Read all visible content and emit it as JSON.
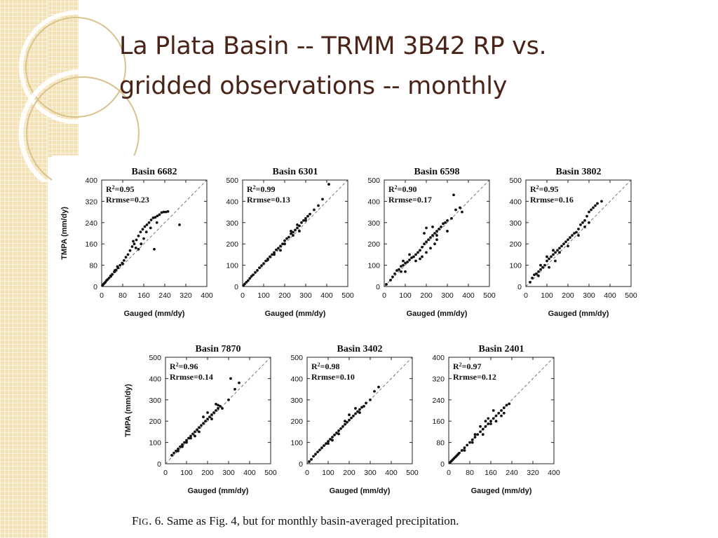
{
  "slide": {
    "title_line1": "La Plata Basin -- TRMM 3B42 RP vs.",
    "title_line2": "gridded observations -- monthly",
    "caption_prefix": "F",
    "caption_smallcaps": "IG",
    "caption_rest": ". 6. Same as Fig. 4, but for monthly basin-averaged precipitation."
  },
  "colors": {
    "title": "#4a2418",
    "background_strip": "#f3e2b5",
    "points": "#111111"
  },
  "chart_data": [
    {
      "type": "scatter",
      "title": "Basin 6682",
      "xlabel": "Gauged (mm/dy)",
      "ylabel": "TMPA (mm/dy)",
      "xlim": [
        0,
        400
      ],
      "ylim": [
        0,
        400
      ],
      "xticks": [
        "0",
        "80",
        "160",
        "240",
        "320",
        "400"
      ],
      "yticks": [
        "0",
        "80",
        "160",
        "240",
        "320",
        "400"
      ],
      "r2_label": "R",
      "r2_value": "=0.95",
      "rrmse_label": "Rrmse=0.23",
      "reference_line": "1:1 dashed",
      "points": [
        [
          3,
          4
        ],
        [
          6,
          8
        ],
        [
          10,
          12
        ],
        [
          14,
          16
        ],
        [
          18,
          22
        ],
        [
          22,
          26
        ],
        [
          28,
          32
        ],
        [
          34,
          40
        ],
        [
          40,
          46
        ],
        [
          48,
          55
        ],
        [
          55,
          62
        ],
        [
          62,
          70
        ],
        [
          70,
          80
        ],
        [
          78,
          88
        ],
        [
          85,
          98
        ],
        [
          92,
          110
        ],
        [
          100,
          120
        ],
        [
          108,
          135
        ],
        [
          116,
          150
        ],
        [
          124,
          160
        ],
        [
          132,
          175
        ],
        [
          140,
          190
        ],
        [
          148,
          205
        ],
        [
          156,
          215
        ],
        [
          164,
          225
        ],
        [
          172,
          232
        ],
        [
          180,
          240
        ],
        [
          188,
          250
        ],
        [
          196,
          258
        ],
        [
          204,
          260
        ],
        [
          212,
          265
        ],
        [
          220,
          270
        ],
        [
          228,
          278
        ],
        [
          236,
          280
        ],
        [
          244,
          280
        ],
        [
          252,
          282
        ],
        [
          186,
          220
        ],
        [
          170,
          205
        ],
        [
          210,
          240
        ],
        [
          296,
          232
        ],
        [
          150,
          160
        ],
        [
          160,
          180
        ],
        [
          130,
          145
        ],
        [
          120,
          170
        ],
        [
          200,
          140
        ],
        [
          60,
          75
        ],
        [
          50,
          60
        ],
        [
          35,
          38
        ],
        [
          80,
          85
        ],
        [
          140,
          140
        ]
      ]
    },
    {
      "type": "scatter",
      "title": "Basin 6301",
      "xlabel": "Gauged (mm/dy)",
      "ylabel": "",
      "xlim": [
        0,
        500
      ],
      "ylim": [
        0,
        500
      ],
      "xticks": [
        "0",
        "100",
        "200",
        "300",
        "400",
        "500"
      ],
      "yticks": [
        "0",
        "100",
        "200",
        "300",
        "400",
        "500"
      ],
      "r2_label": "R",
      "r2_value": "=0.99",
      "rrmse_label": "Rrmse=0.13",
      "reference_line": "1:1 dashed",
      "points": [
        [
          4,
          5
        ],
        [
          10,
          12
        ],
        [
          18,
          20
        ],
        [
          26,
          28
        ],
        [
          34,
          38
        ],
        [
          42,
          48
        ],
        [
          50,
          55
        ],
        [
          60,
          66
        ],
        [
          70,
          76
        ],
        [
          80,
          88
        ],
        [
          90,
          98
        ],
        [
          100,
          108
        ],
        [
          110,
          120
        ],
        [
          120,
          130
        ],
        [
          130,
          140
        ],
        [
          140,
          150
        ],
        [
          150,
          160
        ],
        [
          160,
          172
        ],
        [
          170,
          180
        ],
        [
          180,
          190
        ],
        [
          190,
          200
        ],
        [
          200,
          215
        ],
        [
          210,
          225
        ],
        [
          220,
          232
        ],
        [
          230,
          248
        ],
        [
          240,
          255
        ],
        [
          250,
          265
        ],
        [
          260,
          275
        ],
        [
          270,
          285
        ],
        [
          280,
          300
        ],
        [
          290,
          310
        ],
        [
          300,
          320
        ],
        [
          310,
          330
        ],
        [
          320,
          340
        ],
        [
          340,
          360
        ],
        [
          360,
          380
        ],
        [
          380,
          410
        ],
        [
          410,
          480
        ],
        [
          230,
          260
        ],
        [
          260,
          290
        ],
        [
          300,
          310
        ],
        [
          150,
          150
        ],
        [
          120,
          125
        ],
        [
          200,
          200
        ],
        [
          240,
          240
        ],
        [
          180,
          170
        ],
        [
          270,
          260
        ]
      ]
    },
    {
      "type": "scatter",
      "title": "Basin 6598",
      "xlabel": "Gauged (mm/dy)",
      "ylabel": "",
      "xlim": [
        0,
        500
      ],
      "ylim": [
        0,
        500
      ],
      "xticks": [
        "0",
        "100",
        "200",
        "300",
        "400",
        "500"
      ],
      "yticks": [
        "0",
        "100",
        "200",
        "300",
        "400",
        "500"
      ],
      "r2_label": "R",
      "r2_value": "=0.90",
      "rrmse_label": "Rrmse=0.17",
      "reference_line": "1:1 dashed",
      "points": [
        [
          10,
          10
        ],
        [
          30,
          30
        ],
        [
          40,
          45
        ],
        [
          50,
          60
        ],
        [
          60,
          75
        ],
        [
          70,
          80
        ],
        [
          80,
          95
        ],
        [
          90,
          100
        ],
        [
          100,
          110
        ],
        [
          110,
          115
        ],
        [
          120,
          125
        ],
        [
          130,
          135
        ],
        [
          140,
          140
        ],
        [
          150,
          150
        ],
        [
          160,
          160
        ],
        [
          170,
          170
        ],
        [
          180,
          185
        ],
        [
          190,
          200
        ],
        [
          200,
          210
        ],
        [
          210,
          220
        ],
        [
          220,
          230
        ],
        [
          230,
          240
        ],
        [
          240,
          250
        ],
        [
          250,
          260
        ],
        [
          260,
          270
        ],
        [
          270,
          280
        ],
        [
          280,
          295
        ],
        [
          290,
          300
        ],
        [
          300,
          310
        ],
        [
          330,
          430
        ],
        [
          250,
          240
        ],
        [
          100,
          70
        ],
        [
          180,
          140
        ],
        [
          200,
          160
        ],
        [
          220,
          180
        ],
        [
          240,
          200
        ],
        [
          150,
          120
        ],
        [
          190,
          250
        ],
        [
          200,
          275
        ],
        [
          230,
          280
        ],
        [
          300,
          260
        ],
        [
          120,
          150
        ],
        [
          90,
          120
        ],
        [
          80,
          70
        ],
        [
          320,
          320
        ],
        [
          340,
          360
        ],
        [
          360,
          370
        ],
        [
          370,
          350
        ],
        [
          250,
          220
        ],
        [
          170,
          130
        ]
      ]
    },
    {
      "type": "scatter",
      "title": "Basin 3802",
      "xlabel": "Gauged (mm/dy)",
      "ylabel": "",
      "xlim": [
        0,
        500
      ],
      "ylim": [
        0,
        500
      ],
      "xticks": [
        "0",
        "100",
        "200",
        "300",
        "400",
        "500"
      ],
      "yticks": [
        "0",
        "100",
        "200",
        "300",
        "400",
        "500"
      ],
      "r2_label": "R",
      "r2_value": "=0.95",
      "rrmse_label": "Rrmse=0.16",
      "reference_line": "1:1 dashed",
      "points": [
        [
          20,
          20
        ],
        [
          30,
          40
        ],
        [
          40,
          55
        ],
        [
          50,
          60
        ],
        [
          60,
          70
        ],
        [
          70,
          80
        ],
        [
          80,
          90
        ],
        [
          90,
          100
        ],
        [
          100,
          120
        ],
        [
          110,
          130
        ],
        [
          120,
          140
        ],
        [
          130,
          150
        ],
        [
          140,
          160
        ],
        [
          150,
          170
        ],
        [
          160,
          180
        ],
        [
          170,
          190
        ],
        [
          180,
          200
        ],
        [
          190,
          210
        ],
        [
          200,
          220
        ],
        [
          210,
          230
        ],
        [
          220,
          240
        ],
        [
          230,
          250
        ],
        [
          240,
          255
        ],
        [
          250,
          270
        ],
        [
          260,
          290
        ],
        [
          270,
          300
        ],
        [
          280,
          310
        ],
        [
          290,
          330
        ],
        [
          300,
          350
        ],
        [
          310,
          360
        ],
        [
          320,
          370
        ],
        [
          330,
          380
        ],
        [
          340,
          390
        ],
        [
          360,
          400
        ],
        [
          70,
          100
        ],
        [
          100,
          140
        ],
        [
          130,
          170
        ],
        [
          160,
          160
        ],
        [
          200,
          190
        ],
        [
          250,
          240
        ],
        [
          280,
          280
        ],
        [
          110,
          90
        ],
        [
          140,
          120
        ],
        [
          60,
          50
        ],
        [
          300,
          300
        ]
      ]
    },
    {
      "type": "scatter",
      "title": "Basin 7870",
      "xlabel": "Gauged (mm/dy)",
      "ylabel": "TMPA (mm/dy)",
      "xlim": [
        0,
        500
      ],
      "ylim": [
        0,
        500
      ],
      "xticks": [
        "0",
        "100",
        "200",
        "300",
        "400",
        "500"
      ],
      "yticks": [
        "0",
        "100",
        "200",
        "300",
        "400",
        "500"
      ],
      "r2_label": "R",
      "r2_value": "=0.96",
      "rrmse_label": "Rrmse=0.14",
      "reference_line": "1:1 dashed",
      "points": [
        [
          30,
          40
        ],
        [
          40,
          50
        ],
        [
          50,
          60
        ],
        [
          60,
          70
        ],
        [
          70,
          80
        ],
        [
          80,
          90
        ],
        [
          90,
          100
        ],
        [
          100,
          110
        ],
        [
          110,
          120
        ],
        [
          120,
          130
        ],
        [
          130,
          140
        ],
        [
          140,
          150
        ],
        [
          150,
          160
        ],
        [
          160,
          170
        ],
        [
          170,
          180
        ],
        [
          180,
          190
        ],
        [
          190,
          200
        ],
        [
          200,
          210
        ],
        [
          210,
          220
        ],
        [
          220,
          230
        ],
        [
          230,
          240
        ],
        [
          240,
          250
        ],
        [
          250,
          260
        ],
        [
          260,
          270
        ],
        [
          300,
          300
        ],
        [
          310,
          400
        ],
        [
          330,
          350
        ],
        [
          350,
          380
        ],
        [
          240,
          280
        ],
        [
          250,
          275
        ],
        [
          200,
          240
        ],
        [
          180,
          220
        ],
        [
          160,
          150
        ],
        [
          100,
          100
        ],
        [
          120,
          120
        ],
        [
          140,
          130
        ],
        [
          80,
          80
        ],
        [
          60,
          60
        ],
        [
          220,
          210
        ],
        [
          270,
          260
        ]
      ]
    },
    {
      "type": "scatter",
      "title": "Basin 3402",
      "xlabel": "Gauged (mm/dy)",
      "ylabel": "",
      "xlim": [
        0,
        500
      ],
      "ylim": [
        0,
        500
      ],
      "xticks": [
        "0",
        "100",
        "200",
        "300",
        "400",
        "500"
      ],
      "yticks": [
        "0",
        "100",
        "200",
        "300",
        "400",
        "500"
      ],
      "r2_label": "R",
      "r2_value": "=0.98",
      "rrmse_label": "Rrmse=0.10",
      "reference_line": "1:1 dashed",
      "points": [
        [
          10,
          10
        ],
        [
          20,
          20
        ],
        [
          30,
          35
        ],
        [
          40,
          45
        ],
        [
          50,
          55
        ],
        [
          60,
          65
        ],
        [
          70,
          75
        ],
        [
          80,
          85
        ],
        [
          90,
          95
        ],
        [
          100,
          105
        ],
        [
          110,
          115
        ],
        [
          120,
          125
        ],
        [
          130,
          135
        ],
        [
          140,
          145
        ],
        [
          150,
          155
        ],
        [
          160,
          165
        ],
        [
          170,
          175
        ],
        [
          180,
          185
        ],
        [
          190,
          195
        ],
        [
          200,
          205
        ],
        [
          210,
          215
        ],
        [
          220,
          225
        ],
        [
          230,
          235
        ],
        [
          240,
          245
        ],
        [
          250,
          255
        ],
        [
          260,
          265
        ],
        [
          280,
          285
        ],
        [
          300,
          300
        ],
        [
          320,
          340
        ],
        [
          340,
          360
        ],
        [
          200,
          230
        ],
        [
          230,
          260
        ],
        [
          180,
          200
        ],
        [
          150,
          140
        ],
        [
          100,
          95
        ],
        [
          250,
          240
        ],
        [
          120,
          110
        ],
        [
          270,
          270
        ]
      ]
    },
    {
      "type": "scatter",
      "title": "Basin 2401",
      "xlabel": "Gauged (mm/dy)",
      "ylabel": "",
      "xlim": [
        0,
        400
      ],
      "ylim": [
        0,
        400
      ],
      "xticks": [
        "0",
        "80",
        "160",
        "240",
        "320",
        "400"
      ],
      "yticks": [
        "0",
        "80",
        "160",
        "240",
        "320",
        "400"
      ],
      "r2_label": "R",
      "r2_value": "=0.97",
      "rrmse_label": "Rrmse=0.12",
      "reference_line": "1:1 dashed",
      "points": [
        [
          5,
          5
        ],
        [
          10,
          10
        ],
        [
          15,
          15
        ],
        [
          20,
          20
        ],
        [
          25,
          25
        ],
        [
          30,
          30
        ],
        [
          35,
          35
        ],
        [
          40,
          40
        ],
        [
          50,
          50
        ],
        [
          60,
          60
        ],
        [
          70,
          70
        ],
        [
          80,
          80
        ],
        [
          90,
          90
        ],
        [
          100,
          100
        ],
        [
          110,
          110
        ],
        [
          120,
          120
        ],
        [
          130,
          130
        ],
        [
          140,
          140
        ],
        [
          150,
          150
        ],
        [
          160,
          160
        ],
        [
          170,
          170
        ],
        [
          180,
          180
        ],
        [
          190,
          190
        ],
        [
          200,
          200
        ],
        [
          210,
          210
        ],
        [
          220,
          220
        ],
        [
          230,
          225
        ],
        [
          120,
          140
        ],
        [
          140,
          160
        ],
        [
          160,
          150
        ],
        [
          180,
          160
        ],
        [
          150,
          170
        ],
        [
          130,
          110
        ],
        [
          100,
          110
        ],
        [
          90,
          80
        ],
        [
          200,
          180
        ],
        [
          210,
          190
        ],
        [
          170,
          200
        ],
        [
          60,
          50
        ]
      ]
    }
  ]
}
